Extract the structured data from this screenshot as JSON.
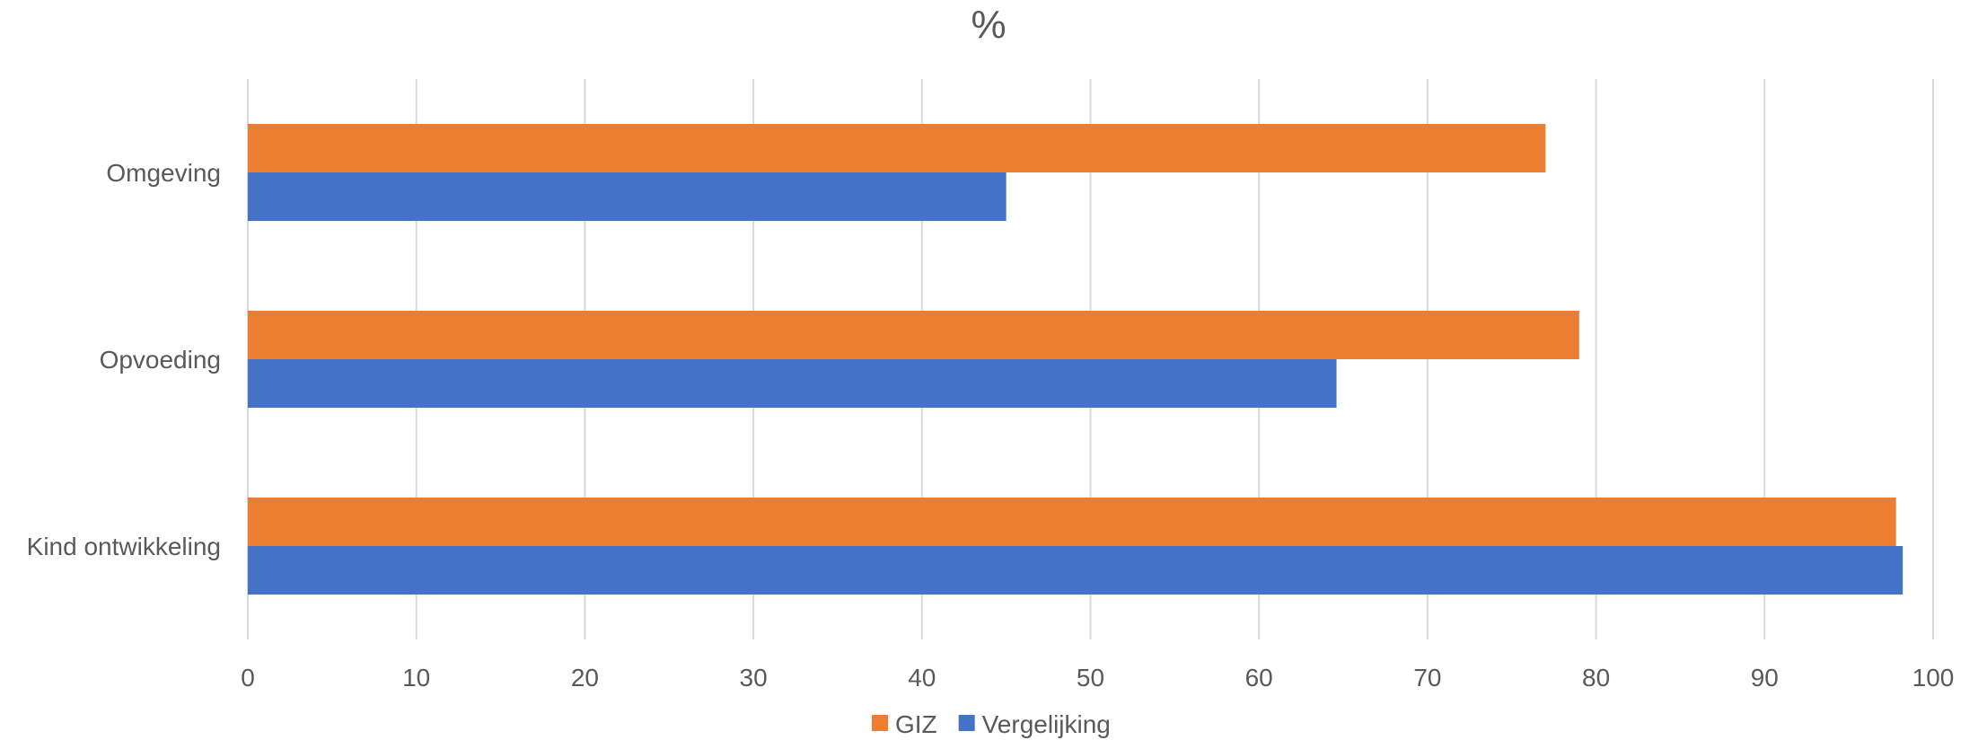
{
  "chart_data": {
    "type": "bar",
    "orientation": "horizontal",
    "title": "%",
    "categories": [
      "Omgeving",
      "Opvoeding",
      "Kind ontwikkeling"
    ],
    "series": [
      {
        "name": "GIZ",
        "color": "#ed7d31",
        "values": [
          77,
          79,
          97.8
        ]
      },
      {
        "name": "Vergelijking",
        "color": "#4472c4",
        "values": [
          45,
          64.6,
          98.2
        ]
      }
    ],
    "xlim": [
      0,
      100
    ],
    "xticks": [
      "0",
      "10",
      "20",
      "30",
      "40",
      "50",
      "60",
      "70",
      "80",
      "90",
      "100"
    ],
    "grid": true,
    "legend_position": "bottom"
  }
}
